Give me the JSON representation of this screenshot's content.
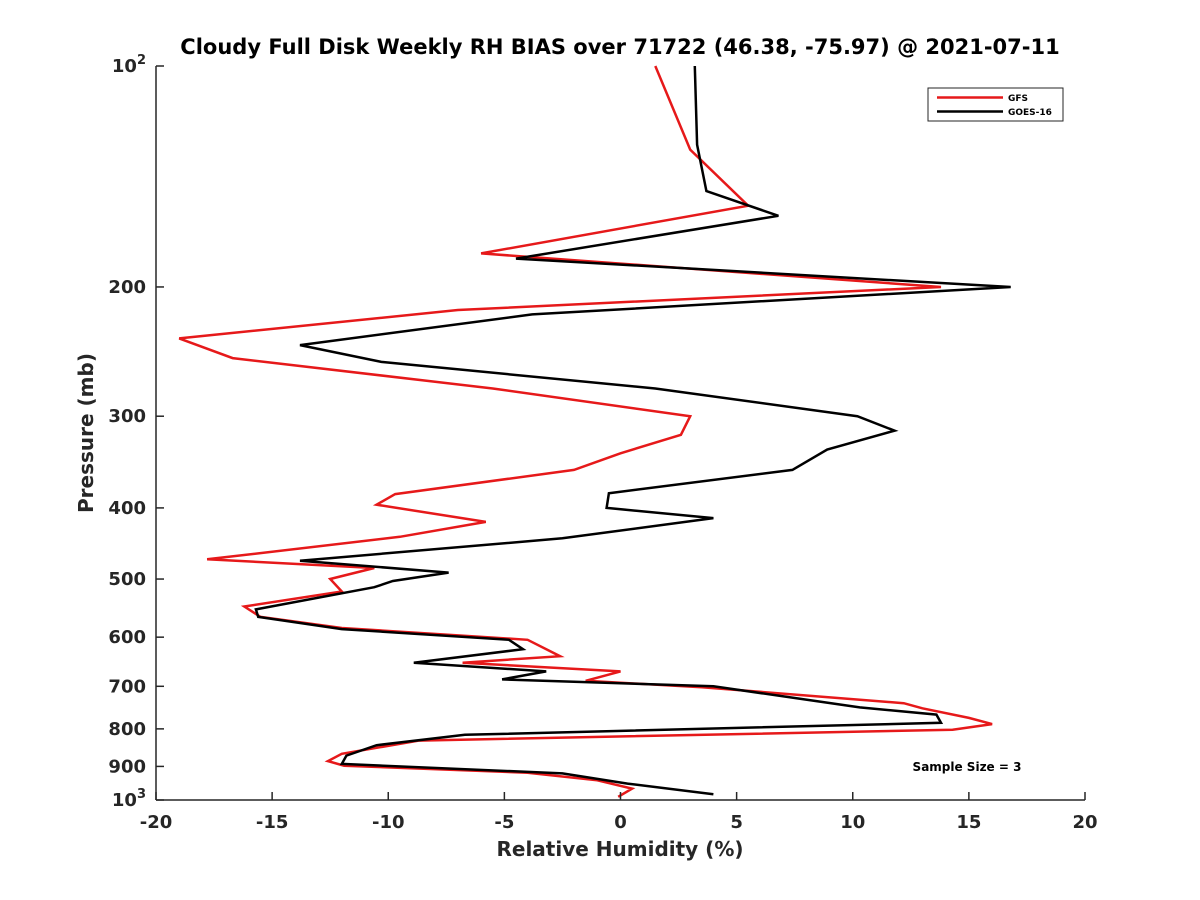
{
  "chart_data": {
    "type": "line",
    "title": "Cloudy Full Disk Weekly RH BIAS over 71722 (46.38, -75.97) @ 2021-07-11",
    "xlabel": "Relative Humidity (%)",
    "ylabel": "Pressure (mb)",
    "xlim": [
      -20,
      20
    ],
    "ylim": [
      100,
      1000
    ],
    "yscale": "log",
    "yreverse": true,
    "grid": false,
    "x_ticks": [
      -20,
      -15,
      -10,
      -5,
      0,
      5,
      10,
      15,
      20
    ],
    "x_tick_labels": [
      "-20",
      "-15",
      "-10",
      "-5",
      "0",
      "5",
      "10",
      "15",
      "20"
    ],
    "y_ticks": [
      {
        "value": 100,
        "label_base": "10",
        "label_exp": "2"
      },
      {
        "value": 200,
        "label_base": "200",
        "label_exp": ""
      },
      {
        "value": 300,
        "label_base": "300",
        "label_exp": ""
      },
      {
        "value": 400,
        "label_base": "400",
        "label_exp": ""
      },
      {
        "value": 500,
        "label_base": "500",
        "label_exp": ""
      },
      {
        "value": 600,
        "label_base": "600",
        "label_exp": ""
      },
      {
        "value": 700,
        "label_base": "700",
        "label_exp": ""
      },
      {
        "value": 800,
        "label_base": "800",
        "label_exp": ""
      },
      {
        "value": 900,
        "label_base": "900",
        "label_exp": ""
      },
      {
        "value": 1000,
        "label_base": "10",
        "label_exp": "3"
      }
    ],
    "legend_position": "top-right",
    "annotation": "Sample Size = 3",
    "series": [
      {
        "name": "GFS",
        "color": "#e6191a",
        "points": [
          [
            1.5,
            100
          ],
          [
            3.0,
            130
          ],
          [
            5.5,
            155
          ],
          [
            -6.0,
            180
          ],
          [
            13.8,
            200
          ],
          [
            -7.0,
            215
          ],
          [
            -19.0,
            235
          ],
          [
            -16.7,
            250
          ],
          [
            -5.5,
            275
          ],
          [
            3.0,
            300
          ],
          [
            2.6,
            318
          ],
          [
            0.0,
            337
          ],
          [
            -2.0,
            355
          ],
          [
            -9.7,
            383
          ],
          [
            -10.5,
            396
          ],
          [
            -5.8,
            418
          ],
          [
            -9.5,
            438
          ],
          [
            -17.8,
            470
          ],
          [
            -10.6,
            483
          ],
          [
            -12.5,
            500
          ],
          [
            -12.0,
            520
          ],
          [
            -16.2,
            545
          ],
          [
            -15.5,
            563
          ],
          [
            -12.0,
            583
          ],
          [
            -4.0,
            605
          ],
          [
            -2.6,
            637
          ],
          [
            -6.8,
            650
          ],
          [
            0.0,
            668
          ],
          [
            -1.5,
            688
          ],
          [
            3.5,
            702
          ],
          [
            12.2,
            738
          ],
          [
            13.0,
            750
          ],
          [
            15.0,
            773
          ],
          [
            16.0,
            788
          ],
          [
            14.3,
            802
          ],
          [
            -8.7,
            830
          ],
          [
            -12.0,
            865
          ],
          [
            -12.6,
            885
          ],
          [
            -11.9,
            898
          ],
          [
            -4.0,
            918
          ],
          [
            -1.0,
            940
          ],
          [
            0.5,
            965
          ],
          [
            -0.1,
            990
          ]
        ]
      },
      {
        "name": "GOES-16",
        "color": "#000000",
        "points": [
          [
            3.2,
            100
          ],
          [
            3.3,
            128
          ],
          [
            3.7,
            148
          ],
          [
            6.8,
            160
          ],
          [
            -4.5,
            183
          ],
          [
            16.8,
            200
          ],
          [
            -3.8,
            218
          ],
          [
            -13.8,
            240
          ],
          [
            -10.3,
            253
          ],
          [
            1.5,
            275
          ],
          [
            10.2,
            300
          ],
          [
            11.8,
            314
          ],
          [
            8.9,
            333
          ],
          [
            7.4,
            355
          ],
          [
            -0.5,
            382
          ],
          [
            -0.6,
            400
          ],
          [
            4.0,
            413
          ],
          [
            -2.5,
            440
          ],
          [
            -13.8,
            472
          ],
          [
            -7.4,
            490
          ],
          [
            -9.8,
            503
          ],
          [
            -10.6,
            513
          ],
          [
            -15.7,
            550
          ],
          [
            -15.6,
            563
          ],
          [
            -12.0,
            585
          ],
          [
            -4.8,
            605
          ],
          [
            -4.2,
            623
          ],
          [
            -8.9,
            650
          ],
          [
            -3.2,
            668
          ],
          [
            -5.1,
            685
          ],
          [
            4.0,
            700
          ],
          [
            8.4,
            733
          ],
          [
            10.3,
            748
          ],
          [
            13.6,
            765
          ],
          [
            13.8,
            785
          ],
          [
            -6.7,
            815
          ],
          [
            -10.5,
            842
          ],
          [
            -11.8,
            870
          ],
          [
            -12.0,
            893
          ],
          [
            -2.5,
            920
          ],
          [
            0.3,
            950
          ],
          [
            4.0,
            982
          ]
        ]
      }
    ]
  }
}
